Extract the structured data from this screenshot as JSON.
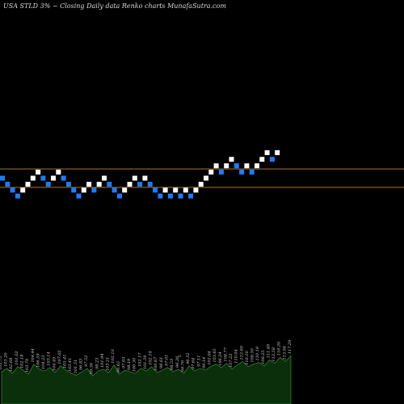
{
  "title": "USA STLD 3% ~  Closing Daily data  Renko  charts MunafaSutra.com",
  "colors": {
    "background": "#000000",
    "up_brick": "#ffffff",
    "down_brick": "#1e7bff",
    "reference_line": "#c8832a",
    "volume_fill": "#0b2e0b",
    "volume_stroke": "#3fa33f",
    "label": "#cfcfcf"
  },
  "chart_data": {
    "type": "renko",
    "series": [
      {
        "values": [
          104.2,
          101.1,
          98.1,
          95.1,
          98.1,
          101.1,
          104.2,
          107.3,
          104.2,
          101.1,
          104.2,
          107.3,
          104.2,
          101.1,
          98.1,
          95.1,
          98.1,
          101.1,
          98.1,
          101.1,
          104.2,
          101.1,
          98.1,
          95.1,
          98.1,
          101.1,
          104.2,
          101.1,
          104.2,
          101.1,
          98.1,
          95.1,
          98.1,
          95.1,
          98.1,
          95.1,
          98.1,
          95.1,
          98.1,
          101.1,
          104.2,
          107.3,
          110.5,
          107.3,
          110.5,
          113.8,
          110.5,
          107.3,
          110.5,
          107.3,
          110.5,
          113.8,
          117.2,
          113.8,
          117.2
        ]
      }
    ],
    "reference_lines": [
      108.9,
      99.5
    ],
    "volume_labels": [
      "103.75",
      "103.20",
      "102.68",
      "101.02",
      "102.18",
      "103.79",
      "104.44",
      "106.59",
      "104.23",
      "103.14",
      "104.49",
      "107.02",
      "105.41",
      "103.41",
      "101.51",
      "96.83",
      "97.52",
      "99.30",
      "98.23",
      "101.94",
      "103.21",
      "102.10",
      "99.65",
      "97.63",
      "98.19",
      "100.30",
      "102.17",
      "101.59",
      "102.14",
      "100.67",
      "98.61",
      "97.01",
      "98.53",
      "96.26",
      "98.70",
      "96.52",
      "97.64",
      "97.11",
      "99.14",
      "101.04",
      "103.65",
      "106.24",
      "108.77",
      "107.22",
      "110.04",
      "112.69",
      "110.10",
      "108.50",
      "110.19",
      "108.25",
      "111.48",
      "113.58",
      "116.20",
      "113.94",
      "117.29"
    ],
    "volume_values": [
      38,
      42,
      36,
      44,
      40,
      35,
      47,
      41,
      39,
      43,
      37,
      45,
      40,
      36,
      34,
      38,
      42,
      33,
      39,
      41,
      37,
      46,
      35,
      40,
      38,
      36,
      42,
      39,
      44,
      37,
      40,
      43,
      38,
      41,
      36,
      45,
      39,
      42,
      40,
      44,
      47,
      43,
      48,
      41,
      46,
      50,
      44,
      47,
      49,
      45,
      52,
      48,
      55,
      50,
      57
    ],
    "marker": "o"
  }
}
